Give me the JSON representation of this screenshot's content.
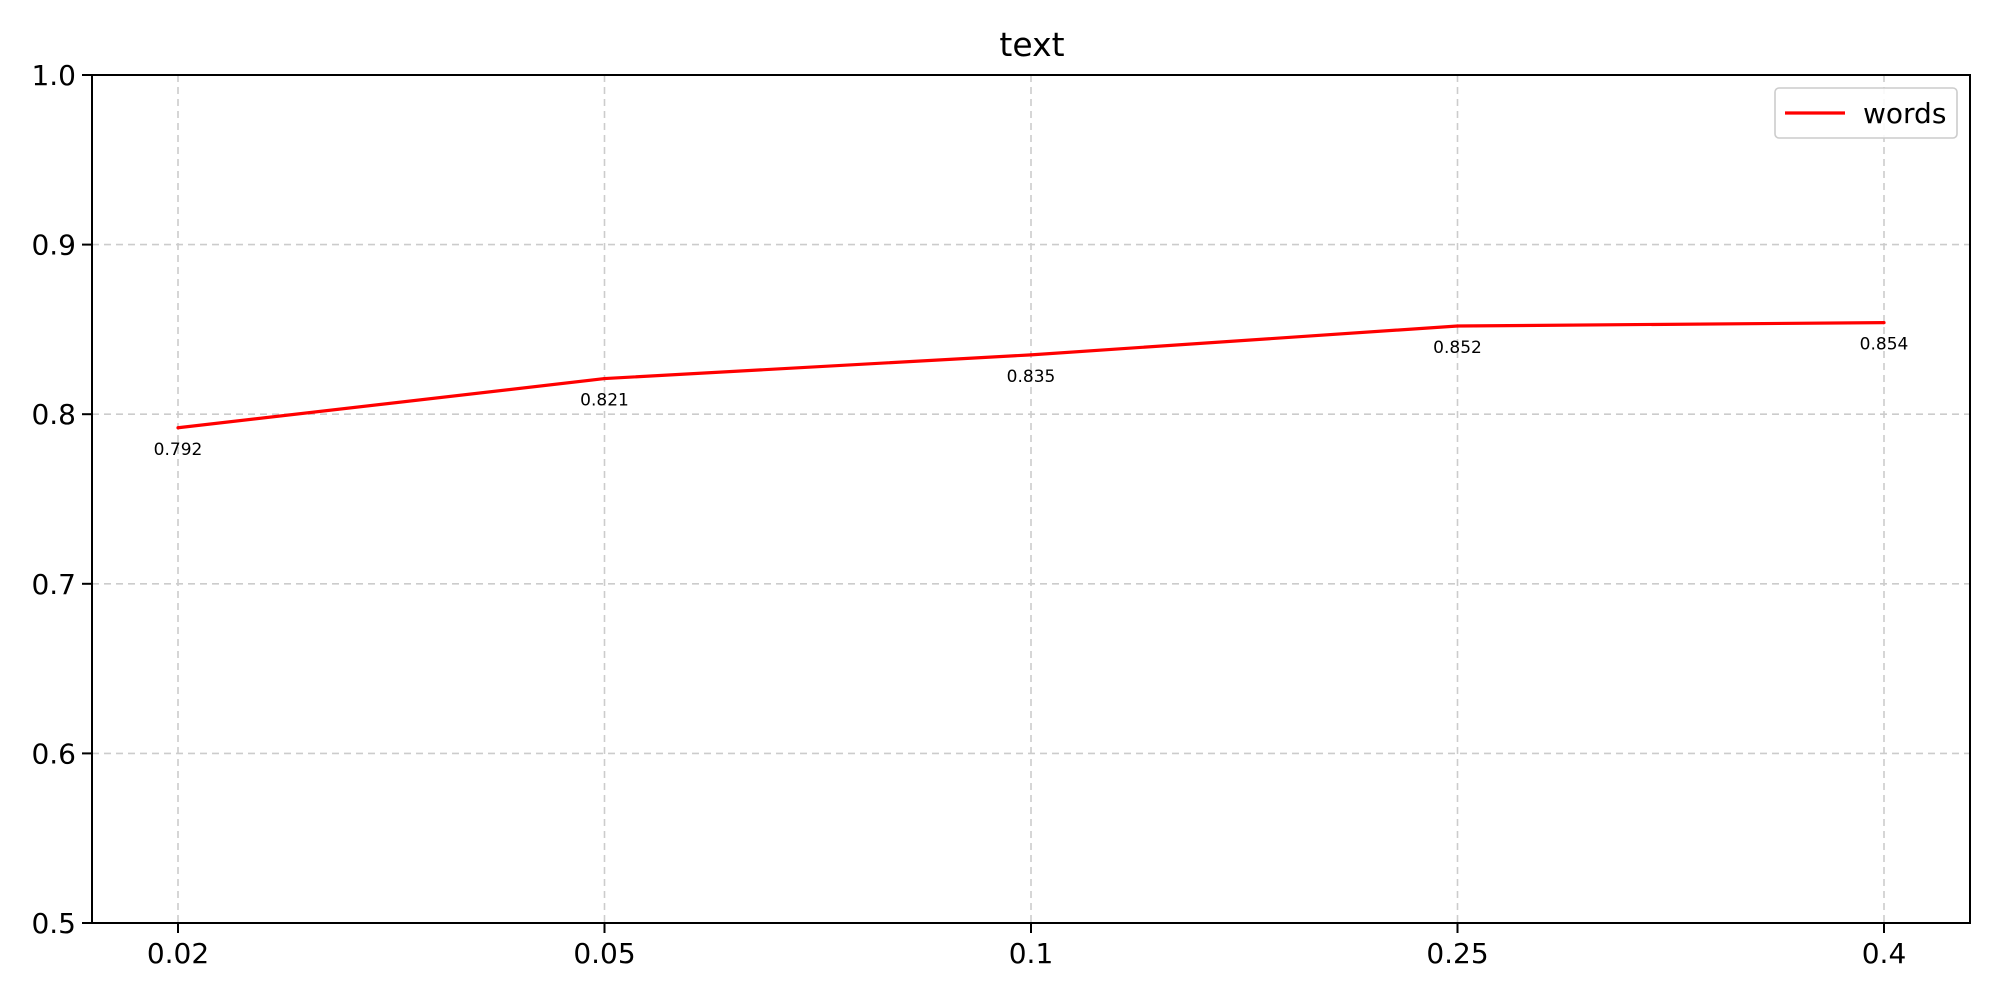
{
  "chart_data": {
    "type": "line",
    "title": "text",
    "xlabel": "",
    "ylabel": "",
    "categories": [
      "0.02",
      "0.05",
      "0.1",
      "0.25",
      "0.4"
    ],
    "series": [
      {
        "name": "words",
        "color": "#ff0000",
        "values": [
          0.792,
          0.821,
          0.835,
          0.852,
          0.854
        ],
        "value_labels": [
          "0.792",
          "0.821",
          "0.835",
          "0.852",
          "0.854"
        ]
      }
    ],
    "ylim": [
      0.5,
      1.0
    ],
    "yticks": [
      "0.5",
      "0.6",
      "0.7",
      "0.8",
      "0.9",
      "1.0"
    ],
    "grid": true,
    "legend_position": "top-right"
  }
}
